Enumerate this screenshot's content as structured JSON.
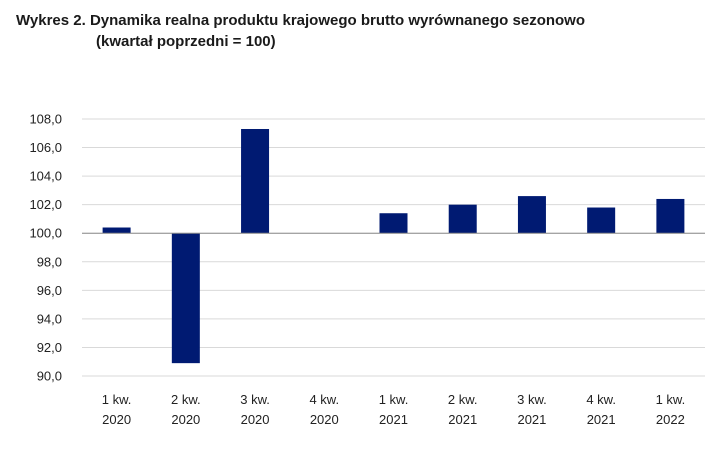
{
  "title": {
    "line1": "Wykres 2. Dynamika realna produktu krajowego brutto wyrównanego sezonowo",
    "line2": "(kwartał poprzedni = 100)"
  },
  "chart_data": {
    "type": "bar",
    "baseline": 100.0,
    "categories": [
      [
        "1 kw.",
        "2020"
      ],
      [
        "2 kw.",
        "2020"
      ],
      [
        "3 kw.",
        "2020"
      ],
      [
        "4 kw.",
        "2020"
      ],
      [
        "1 kw.",
        "2021"
      ],
      [
        "2 kw.",
        "2021"
      ],
      [
        "3 kw.",
        "2021"
      ],
      [
        "4 kw.",
        "2021"
      ],
      [
        "1 kw.",
        "2022"
      ]
    ],
    "values": [
      100.4,
      90.9,
      107.3,
      100.0,
      101.4,
      102.0,
      102.6,
      101.8,
      102.4
    ],
    "ylim": [
      90.0,
      108.0
    ],
    "yticks": [
      "90,0",
      "92,0",
      "94,0",
      "96,0",
      "98,0",
      "100,0",
      "102,0",
      "104,0",
      "106,0",
      "108,0"
    ],
    "grid": true,
    "colors": {
      "bar": "#001a72",
      "grid": "#d9d9d9",
      "axis": "#8c8c8c"
    }
  }
}
